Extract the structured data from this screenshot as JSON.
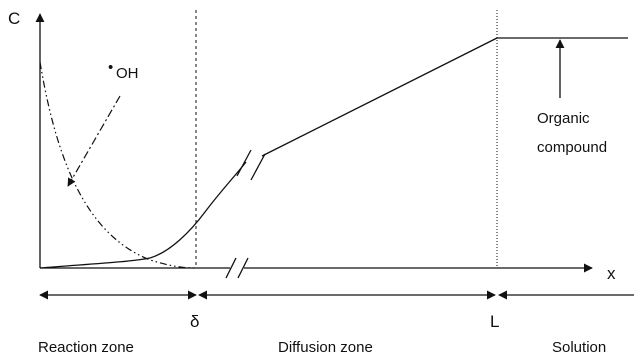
{
  "axes": {
    "y_label": "C",
    "x_label": "x"
  },
  "species": {
    "radical_dot": "•",
    "radical_label": "OH",
    "organic_line1": "Organic",
    "organic_line2": "compound"
  },
  "boundaries": {
    "delta": "δ",
    "L": "L"
  },
  "zones": {
    "reaction": "Reaction zone",
    "diffusion": "Diffusion zone",
    "solution": "Solution"
  }
}
